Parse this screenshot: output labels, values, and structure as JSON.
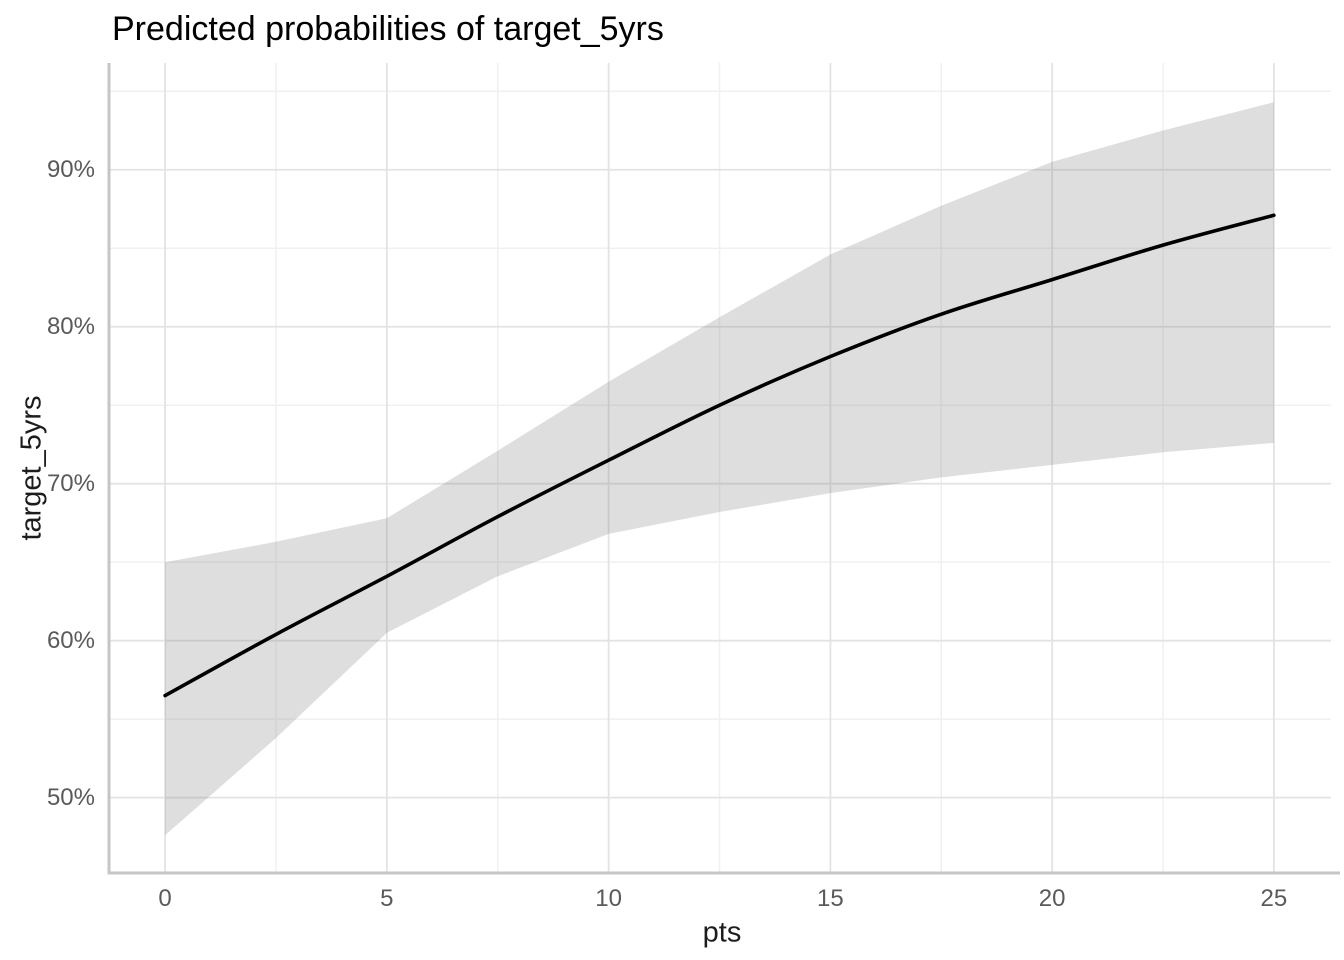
{
  "chart_data": {
    "type": "line",
    "title": "Predicted probabilities of target_5yrs",
    "xlabel": "pts",
    "ylabel": "target_5yrs",
    "x": [
      0,
      2.5,
      5,
      7.5,
      10,
      12.5,
      15,
      17.5,
      20,
      22.5,
      25
    ],
    "series": [
      {
        "name": "predicted_probability",
        "values": [
          56.5,
          60.4,
          64.1,
          67.9,
          71.5,
          75.0,
          78.1,
          80.8,
          83.0,
          85.2,
          87.1
        ]
      },
      {
        "name": "conf_low",
        "values": [
          47.6,
          53.8,
          60.5,
          64.1,
          66.8,
          68.2,
          69.4,
          70.4,
          71.2,
          72.0,
          72.6
        ]
      },
      {
        "name": "conf_high",
        "values": [
          65.0,
          66.3,
          67.8,
          72.1,
          76.5,
          80.6,
          84.6,
          87.7,
          90.5,
          92.5,
          94.3
        ]
      }
    ],
    "x_ticks": {
      "values": [
        0,
        5,
        10,
        15,
        20,
        25
      ],
      "labels": [
        "0",
        "5",
        "10",
        "15",
        "20",
        "25"
      ]
    },
    "y_ticks": {
      "values": [
        50,
        60,
        70,
        80,
        90
      ],
      "labels": [
        "50%",
        "60%",
        "70%",
        "80%",
        "90%"
      ]
    },
    "xlim": [
      -1.265,
      26.4
    ],
    "ylim": [
      45.2,
      96.8
    ],
    "grid": "major+minor",
    "legend": "none",
    "colors": {
      "line": "#000000",
      "ribbon": "rgba(125,125,125,0.25)",
      "grid_major": "#e3e3e3",
      "grid_minor": "#f0f0f0",
      "axis_line": "#c6c6c6",
      "tick_text": "#5a5a5a",
      "title_text": "#000000"
    }
  }
}
